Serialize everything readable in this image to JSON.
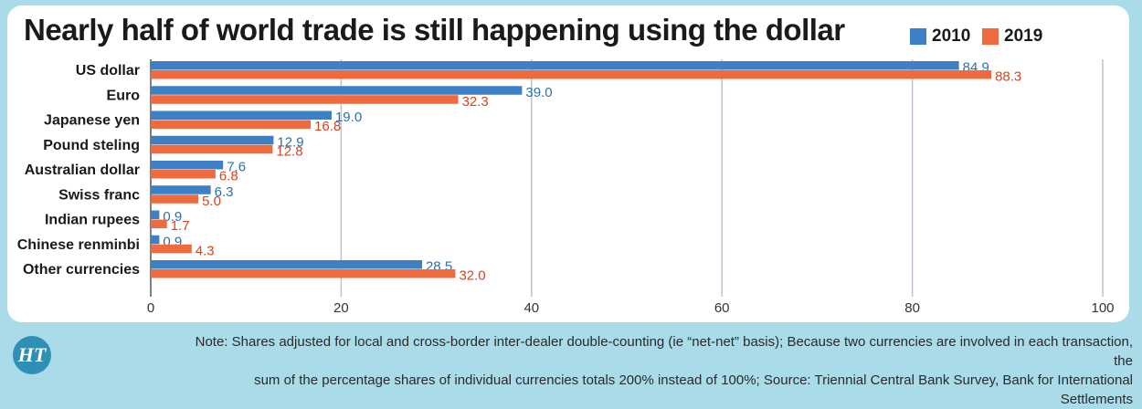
{
  "title": "Nearly half of world trade is still happening using the dollar",
  "note_line1": "Note: Shares adjusted for local and cross-border inter-dealer double-counting (ie “net-net” basis); Because two currencies are involved in each transaction, the",
  "note_line2": "sum of the percentage shares of individual currencies totals 200% instead of 100%; Source: Triennial Central Bank Survey, Bank for International Settlements",
  "logo_text": "HT",
  "colors": {
    "s2010": "#3d80c6",
    "s2019": "#ef6a3d",
    "grid": "#b8c4d4",
    "label2010": "#2a6fb5",
    "label2019": "#d9431c"
  },
  "chart_data": {
    "type": "bar",
    "orientation": "horizontal",
    "categories": [
      "US dollar",
      "Euro",
      "Japanese yen",
      "Pound steling",
      "Australian dollar",
      "Swiss franc",
      "Indian rupees",
      "Chinese renminbi",
      "Other currencies"
    ],
    "series": [
      {
        "name": "2010",
        "values": [
          84.9,
          39.0,
          19.0,
          12.9,
          7.6,
          6.3,
          0.9,
          0.9,
          28.5
        ]
      },
      {
        "name": "2019",
        "values": [
          88.3,
          32.3,
          16.8,
          12.8,
          6.8,
          5.0,
          1.7,
          4.3,
          32.0
        ]
      }
    ],
    "xlim": [
      0,
      100
    ],
    "xticks": [
      "0",
      "20",
      "40",
      "60",
      "80",
      "100"
    ],
    "legend": "top-right",
    "grid": true
  }
}
